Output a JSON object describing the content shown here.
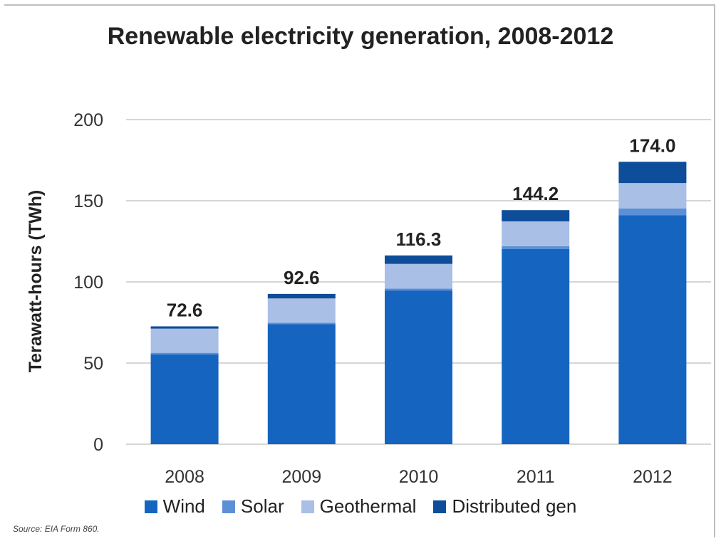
{
  "chart_data": {
    "type": "bar",
    "stacked": true,
    "title": "Renewable electricity generation, 2008-2012",
    "xlabel": "",
    "ylabel": "Terawatt-hours (TWh)",
    "ylim": [
      0,
      200
    ],
    "yticks": [
      0,
      50,
      100,
      150,
      200
    ],
    "categories": [
      "2008",
      "2009",
      "2010",
      "2011",
      "2012"
    ],
    "series": [
      {
        "name": "Wind",
        "color": "#1565c0",
        "values": [
          55.4,
          73.9,
          94.7,
          120.2,
          141.0
        ]
      },
      {
        "name": "Solar",
        "color": "#5b8fd6",
        "values": [
          0.9,
          0.9,
          1.2,
          1.8,
          4.3
        ]
      },
      {
        "name": "Geothermal",
        "color": "#a9bfe6",
        "values": [
          14.9,
          15.0,
          15.2,
          15.3,
          15.6
        ]
      },
      {
        "name": "Distributed gen",
        "color": "#0d4d99",
        "values": [
          1.4,
          2.8,
          5.2,
          6.9,
          13.1
        ]
      }
    ],
    "totals": [
      "72.6",
      "92.6",
      "116.3",
      "144.2",
      "174.0"
    ],
    "grid": true,
    "legend_position": "bottom",
    "source_note": "Source: EIA Form 860."
  }
}
